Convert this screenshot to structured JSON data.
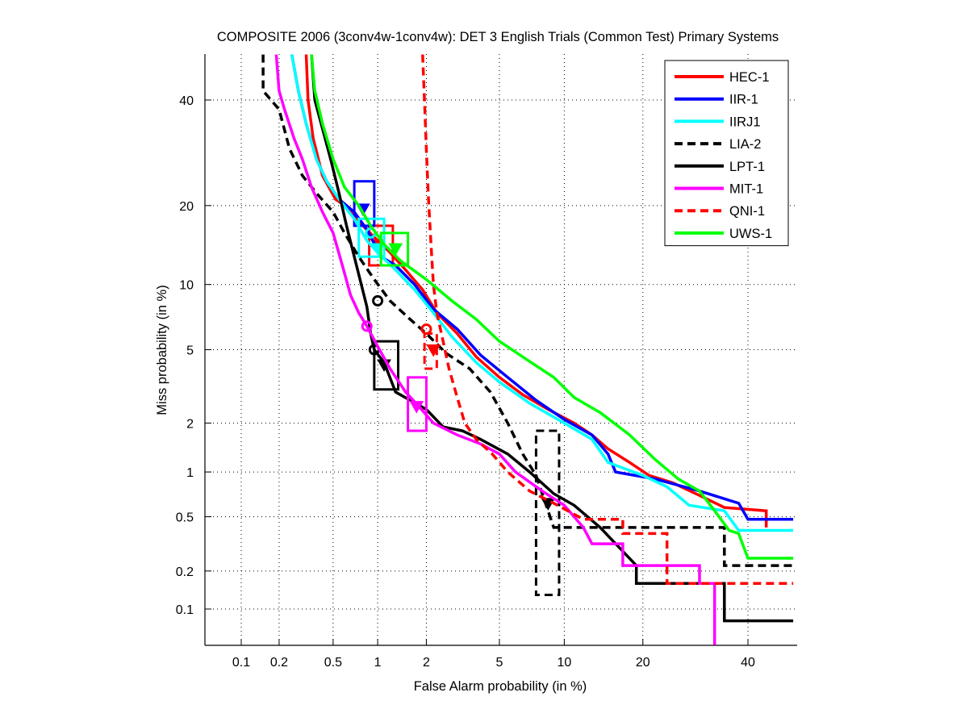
{
  "chart_data": {
    "type": "line",
    "title": "COMPOSITE 2006 (3conv4w-1conv4w): DET 3 English Trials (Common Test) Primary Systems",
    "xlabel": "False Alarm probability (in %)",
    "ylabel": "Miss probability (in %)",
    "x_scale": "probit",
    "y_scale": "probit",
    "xlim": [
      0.05,
      50
    ],
    "ylim": [
      0.05,
      50
    ],
    "grid": true,
    "legend_position": "top-right",
    "xticks": [
      0.1,
      0.2,
      0.5,
      1,
      2,
      5,
      10,
      20,
      40
    ],
    "xtick_labels": [
      "0.1",
      "0.2",
      "0.5",
      "1",
      "2",
      "5",
      "10",
      "20",
      "40"
    ],
    "yticks": [
      0.1,
      0.2,
      0.5,
      1,
      2,
      5,
      10,
      20,
      40
    ],
    "ytick_labels": [
      "0.1",
      "0.2",
      "0.5",
      "1",
      "2",
      "5",
      "10",
      "20",
      "40"
    ],
    "series": [
      {
        "name": "HEC-1",
        "color": "#ff0000",
        "style": "solid",
        "points": [
          [
            0.32,
            50
          ],
          [
            0.33,
            40
          ],
          [
            0.36,
            32
          ],
          [
            0.42,
            25
          ],
          [
            0.52,
            21
          ],
          [
            0.65,
            19.5
          ],
          [
            0.8,
            17
          ],
          [
            1.0,
            15
          ],
          [
            1.2,
            13.5
          ],
          [
            1.5,
            11.5
          ],
          [
            1.9,
            9.5
          ],
          [
            2.3,
            7.5
          ],
          [
            3.0,
            6.0
          ],
          [
            3.8,
            4.6
          ],
          [
            5.0,
            3.6
          ],
          [
            6.5,
            2.9
          ],
          [
            8.5,
            2.4
          ],
          [
            11,
            2.0
          ],
          [
            13,
            1.7
          ],
          [
            15,
            1.4
          ],
          [
            18,
            1.15
          ],
          [
            21,
            0.95
          ],
          [
            25,
            0.85
          ],
          [
            30,
            0.7
          ],
          [
            35,
            0.58
          ],
          [
            44,
            0.55
          ],
          [
            44,
            0.42
          ]
        ],
        "actual_dcf": {
          "fa": 1.0,
          "miss": 14.5
        },
        "min_dcf": {
          "fa": 0.9,
          "miss": 16
        },
        "confidence_box": {
          "fa": [
            0.88,
            1.25
          ],
          "miss": [
            12,
            17
          ]
        }
      },
      {
        "name": "IIR-1",
        "color": "#0000ff",
        "style": "solid",
        "points": [
          [
            0.25,
            50
          ],
          [
            0.28,
            42
          ],
          [
            0.32,
            35
          ],
          [
            0.38,
            28
          ],
          [
            0.45,
            24
          ],
          [
            0.55,
            21
          ],
          [
            0.7,
            19
          ],
          [
            0.85,
            16.5
          ],
          [
            1.05,
            13
          ],
          [
            1.3,
            12
          ],
          [
            1.7,
            10
          ],
          [
            2.2,
            7.8
          ],
          [
            3.0,
            6.3
          ],
          [
            4.0,
            4.7
          ],
          [
            5.5,
            3.6
          ],
          [
            7.5,
            2.7
          ],
          [
            10,
            2.1
          ],
          [
            13,
            1.7
          ],
          [
            15,
            1.3
          ],
          [
            16,
            1.0
          ],
          [
            22,
            0.9
          ],
          [
            30,
            0.75
          ],
          [
            38,
            0.62
          ],
          [
            40,
            0.48
          ],
          [
            50,
            0.48
          ]
        ],
        "actual_dcf": {
          "fa": 0.8,
          "miss": 19.5
        },
        "confidence_box": {
          "fa": [
            0.7,
            0.95
          ],
          "miss": [
            17,
            24
          ]
        }
      },
      {
        "name": "IIRJ1",
        "color": "#00ffff",
        "style": "solid",
        "points": [
          [
            0.25,
            50
          ],
          [
            0.28,
            42
          ],
          [
            0.32,
            35
          ],
          [
            0.38,
            28
          ],
          [
            0.45,
            24
          ],
          [
            0.55,
            21
          ],
          [
            0.7,
            18
          ],
          [
            0.85,
            15
          ],
          [
            1.0,
            13.5
          ],
          [
            1.3,
            11.5
          ],
          [
            1.7,
            9.5
          ],
          [
            2.2,
            7.5
          ],
          [
            2.8,
            5.8
          ],
          [
            3.8,
            4.3
          ],
          [
            5.0,
            3.4
          ],
          [
            7.0,
            2.6
          ],
          [
            10,
            2.0
          ],
          [
            13,
            1.6
          ],
          [
            15,
            1.15
          ],
          [
            20,
            0.95
          ],
          [
            24,
            0.8
          ],
          [
            28,
            0.6
          ],
          [
            35,
            0.55
          ],
          [
            38,
            0.4
          ],
          [
            50,
            0.4
          ]
        ],
        "actual_dcf": {
          "fa": 1.0,
          "miss": 14
        },
        "min_dcf": {
          "fa": 0.9,
          "miss": 16
        },
        "confidence_box": {
          "fa": [
            0.75,
            1.1
          ],
          "miss": [
            13,
            18
          ]
        }
      },
      {
        "name": "LIA-2",
        "color": "#000000",
        "style": "dashed",
        "points": [
          [
            0.15,
            50
          ],
          [
            0.15,
            42
          ],
          [
            0.2,
            38
          ],
          [
            0.24,
            30
          ],
          [
            0.3,
            25
          ],
          [
            0.38,
            22
          ],
          [
            0.5,
            19
          ],
          [
            0.6,
            16
          ],
          [
            0.75,
            13
          ],
          [
            0.95,
            10.5
          ],
          [
            1.2,
            8.5
          ],
          [
            1.6,
            7.0
          ],
          [
            2.0,
            6.0
          ],
          [
            2.6,
            4.8
          ],
          [
            3.5,
            4.0
          ],
          [
            4.5,
            3.0
          ],
          [
            5.5,
            2.0
          ],
          [
            6.5,
            1.3
          ],
          [
            7.5,
            0.95
          ],
          [
            9.0,
            0.42
          ],
          [
            35,
            0.42
          ],
          [
            35,
            0.22
          ],
          [
            50,
            0.22
          ]
        ],
        "actual_dcf": {
          "fa": 8.5,
          "miss": 0.62
        },
        "min_dcf": {
          "fa": 1.0,
          "miss": 8.5
        },
        "confidence_box": {
          "fa": [
            7.5,
            9.5
          ],
          "miss": [
            0.13,
            1.8
          ]
        }
      },
      {
        "name": "LPT-1",
        "color": "#000000",
        "style": "solid",
        "points": [
          [
            0.35,
            50
          ],
          [
            0.37,
            40
          ],
          [
            0.42,
            34
          ],
          [
            0.48,
            28
          ],
          [
            0.55,
            22
          ],
          [
            0.62,
            17
          ],
          [
            0.7,
            13
          ],
          [
            0.78,
            10
          ],
          [
            0.85,
            8
          ],
          [
            0.9,
            6
          ],
          [
            0.95,
            5
          ],
          [
            1.1,
            4.3
          ],
          [
            1.3,
            3.0
          ],
          [
            1.6,
            2.7
          ],
          [
            2.0,
            2.4
          ],
          [
            2.5,
            1.9
          ],
          [
            3.2,
            1.8
          ],
          [
            4.0,
            1.6
          ],
          [
            5.5,
            1.3
          ],
          [
            7.0,
            1.0
          ],
          [
            9.0,
            0.72
          ],
          [
            11,
            0.6
          ],
          [
            14,
            0.42
          ],
          [
            19,
            0.22
          ],
          [
            19,
            0.16
          ],
          [
            35,
            0.16
          ],
          [
            35,
            0.08
          ],
          [
            50,
            0.08
          ]
        ],
        "actual_dcf": {
          "fa": 1.1,
          "miss": 4.2
        },
        "min_dcf": {
          "fa": 0.95,
          "miss": 5.0
        },
        "confidence_box": {
          "fa": [
            0.95,
            1.35
          ],
          "miss": [
            3.1,
            5.5
          ]
        }
      },
      {
        "name": "MIT-1",
        "color": "#ff00ff",
        "style": "solid",
        "points": [
          [
            0.19,
            50
          ],
          [
            0.2,
            42
          ],
          [
            0.22,
            38
          ],
          [
            0.26,
            32
          ],
          [
            0.3,
            28
          ],
          [
            0.35,
            23
          ],
          [
            0.42,
            19
          ],
          [
            0.5,
            16
          ],
          [
            0.58,
            12
          ],
          [
            0.66,
            9
          ],
          [
            0.75,
            7.5
          ],
          [
            0.85,
            6.5
          ],
          [
            1.0,
            5.2
          ],
          [
            1.2,
            4.0
          ],
          [
            1.5,
            3.0
          ],
          [
            1.8,
            2.5
          ],
          [
            2.2,
            2.0
          ],
          [
            3.0,
            1.7
          ],
          [
            4.0,
            1.5
          ],
          [
            5.0,
            1.3
          ],
          [
            6.0,
            1.0
          ],
          [
            8.0,
            0.75
          ],
          [
            10,
            0.6
          ],
          [
            12,
            0.42
          ],
          [
            13,
            0.32
          ],
          [
            17,
            0.32
          ],
          [
            17,
            0.22
          ],
          [
            30,
            0.22
          ],
          [
            30,
            0.16
          ],
          [
            33,
            0.16
          ],
          [
            33,
            0.05
          ]
        ],
        "actual_dcf": {
          "fa": 1.75,
          "miss": 2.5
        },
        "min_dcf": {
          "fa": 0.85,
          "miss": 6.5
        },
        "confidence_box": {
          "fa": [
            1.55,
            2.0
          ],
          "miss": [
            1.8,
            3.6
          ]
        }
      },
      {
        "name": "QNI-1",
        "color": "#ff0000",
        "style": "dashed",
        "points": [
          [
            1.9,
            50
          ],
          [
            1.95,
            40
          ],
          [
            2.0,
            30
          ],
          [
            2.05,
            22
          ],
          [
            2.1,
            17
          ],
          [
            2.15,
            13
          ],
          [
            2.2,
            10
          ],
          [
            2.3,
            7.5
          ],
          [
            2.5,
            5.5
          ],
          [
            2.7,
            4.0
          ],
          [
            3.0,
            2.8
          ],
          [
            3.3,
            2.0
          ],
          [
            3.8,
            1.6
          ],
          [
            4.6,
            1.3
          ],
          [
            5.5,
            1.0
          ],
          [
            7.0,
            0.75
          ],
          [
            9.0,
            0.62
          ],
          [
            12,
            0.48
          ],
          [
            17,
            0.48
          ],
          [
            17,
            0.38
          ],
          [
            24,
            0.38
          ],
          [
            24,
            0.16
          ],
          [
            50,
            0.16
          ]
        ],
        "actual_dcf": {
          "fa": 2.2,
          "miss": 5.0
        },
        "min_dcf": {
          "fa": 2.0,
          "miss": 6.3
        },
        "confidence_box": {
          "fa": [
            1.95,
            2.3
          ],
          "miss": [
            4.0,
            6.0
          ]
        }
      },
      {
        "name": "UWS-1",
        "color": "#00ff00",
        "style": "solid",
        "points": [
          [
            0.35,
            50
          ],
          [
            0.37,
            42
          ],
          [
            0.42,
            35
          ],
          [
            0.5,
            28
          ],
          [
            0.6,
            23
          ],
          [
            0.75,
            20
          ],
          [
            0.9,
            17
          ],
          [
            1.1,
            14.5
          ],
          [
            1.4,
            12.5
          ],
          [
            2.0,
            10.5
          ],
          [
            2.8,
            8.5
          ],
          [
            3.8,
            7.0
          ],
          [
            5.0,
            5.5
          ],
          [
            6.5,
            4.6
          ],
          [
            9.0,
            3.6
          ],
          [
            11,
            2.8
          ],
          [
            14,
            2.3
          ],
          [
            18,
            1.7
          ],
          [
            22,
            1.2
          ],
          [
            26,
            0.9
          ],
          [
            30,
            0.75
          ],
          [
            33,
            0.55
          ],
          [
            36,
            0.4
          ],
          [
            38,
            0.38
          ],
          [
            40,
            0.25
          ],
          [
            50,
            0.25
          ]
        ],
        "actual_dcf": {
          "fa": 1.3,
          "miss": 14
        },
        "confidence_box": {
          "fa": [
            1.05,
            1.55
          ],
          "miss": [
            12,
            16
          ]
        }
      }
    ]
  }
}
